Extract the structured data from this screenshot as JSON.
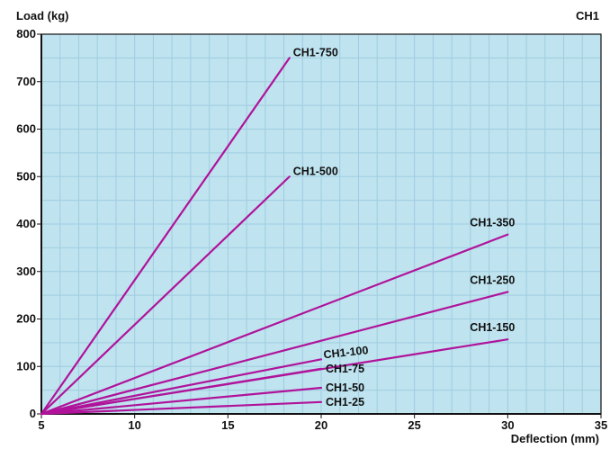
{
  "chart_data": {
    "type": "line",
    "title": "CH1",
    "ylabel": "Load (kg)",
    "xlabel": "Deflection (mm)",
    "xlim": [
      5,
      35
    ],
    "ylim": [
      0,
      800
    ],
    "x_ticks": [
      5,
      10,
      15,
      20,
      25,
      30,
      35
    ],
    "y_ticks": [
      0,
      100,
      200,
      300,
      400,
      500,
      600,
      700,
      800
    ],
    "grid": true,
    "background_color": "#bfe3ef",
    "grid_color": "#9fcde0",
    "line_color": "#b0139a",
    "series": [
      {
        "name": "CH1-750",
        "x": [
          5,
          18.3
        ],
        "y": [
          0,
          750
        ]
      },
      {
        "name": "CH1-500",
        "x": [
          5,
          18.3
        ],
        "y": [
          0,
          500
        ]
      },
      {
        "name": "CH1-350",
        "x": [
          5,
          30
        ],
        "y": [
          0,
          378
        ]
      },
      {
        "name": "CH1-250",
        "x": [
          5,
          30
        ],
        "y": [
          0,
          257
        ]
      },
      {
        "name": "CH1-150",
        "x": [
          5,
          30
        ],
        "y": [
          0,
          157
        ]
      },
      {
        "name": "CH1-100",
        "x": [
          5,
          20
        ],
        "y": [
          0,
          115
        ]
      },
      {
        "name": "CH1-75",
        "x": [
          5,
          20
        ],
        "y": [
          0,
          95
        ]
      },
      {
        "name": "CH1-50",
        "x": [
          5,
          20
        ],
        "y": [
          0,
          55
        ]
      },
      {
        "name": "CH1-25",
        "x": [
          5,
          20
        ],
        "y": [
          0,
          25
        ]
      }
    ]
  }
}
